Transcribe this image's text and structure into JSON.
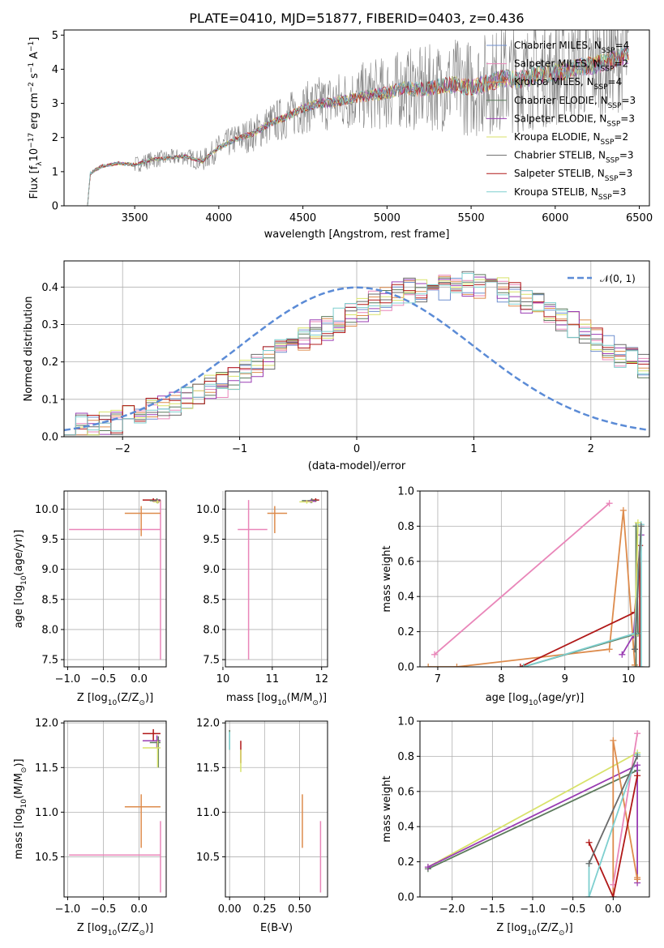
{
  "colors": {
    "chabrier_miles": "#6f8fcf",
    "salpeter_miles": "#e986b9",
    "kroupa_miles": "#dd8b4c",
    "chabrier_elodie": "#5c7a5c",
    "salpeter_elodie": "#9a3db3",
    "kroupa_elodie": "#d8e26a",
    "chabrier_stelib": "#6a6a6a",
    "salpeter_stelib": "#b01818",
    "kroupa_stelib": "#7ecfcf",
    "normal": "#5b8bd6"
  },
  "chart_data": [
    {
      "id": "spectrum",
      "type": "line",
      "title": "PLATE=0410, MJD=51877, FIBERID=0403, z=0.436",
      "xlabel": "wavelength [Angstrom, rest frame]",
      "ylabel": "Flux [f",
      "ylabel_sub": "λ",
      "ylabel_mid": "10",
      "ylabel_sup": "−17",
      "ylabel_tail": " erg cm",
      "ylabel_sup2": "−2",
      "ylabel_tail2": " s",
      "ylabel_sup3": "−1",
      "ylabel_tail3": " A",
      "ylabel_sup4": "−1",
      "ylabel_end": "]",
      "xlim": [
        3080,
        6560
      ],
      "ylim": [
        0,
        5.15
      ],
      "xticks": [
        "3500",
        "4000",
        "4500",
        "5000",
        "5500",
        "6000",
        "6500"
      ],
      "xtick_values": [
        3500,
        4000,
        4500,
        5000,
        5500,
        6000,
        6500
      ],
      "yticks": [
        "0",
        "1",
        "2",
        "3",
        "4",
        "5"
      ],
      "ytick_values": [
        0,
        1,
        2,
        3,
        4,
        5
      ],
      "grid": false,
      "legend": "right",
      "continuum": {
        "x": [
          3220,
          3300,
          3400,
          3500,
          3600,
          3700,
          3800,
          3900,
          4000,
          4100,
          4200,
          4300,
          4400,
          4500,
          4600,
          4700,
          4800,
          4900,
          5000,
          5100,
          5200,
          5300,
          5400,
          5500,
          5600,
          5700,
          5800,
          5900,
          6000,
          6100,
          6200,
          6300,
          6420
        ],
        "y": [
          0.9,
          1.15,
          1.25,
          1.2,
          1.35,
          1.4,
          1.45,
          1.3,
          1.7,
          1.95,
          2.1,
          2.4,
          2.6,
          2.85,
          3.0,
          3.05,
          3.15,
          3.25,
          3.3,
          3.45,
          3.4,
          3.5,
          3.55,
          3.45,
          3.6,
          3.75,
          3.7,
          3.85,
          3.9,
          4.0,
          4.1,
          4.2,
          4.4
        ]
      },
      "series": [
        {
          "name": "Chabrier MILES, N",
          "sub": "SSP",
          "suffix": "=4",
          "color_key": "chabrier_miles"
        },
        {
          "name": "Salpeter MILES, N",
          "sub": "SSP",
          "suffix": "=2",
          "color_key": "salpeter_miles"
        },
        {
          "name": "Kroupa MILES, N",
          "sub": "SSP",
          "suffix": "=4",
          "color_key": "kroupa_miles"
        },
        {
          "name": "Chabrier ELODIE, N",
          "sub": "SSP",
          "suffix": "=3",
          "color_key": "chabrier_elodie"
        },
        {
          "name": "Salpeter ELODIE, N",
          "sub": "SSP",
          "suffix": "=3",
          "color_key": "salpeter_elodie"
        },
        {
          "name": "Kroupa ELODIE, N",
          "sub": "SSP",
          "suffix": "=2",
          "color_key": "kroupa_elodie"
        },
        {
          "name": "Chabrier STELIB, N",
          "sub": "SSP",
          "suffix": "=3",
          "color_key": "chabrier_stelib"
        },
        {
          "name": "Salpeter STELIB, N",
          "sub": "SSP",
          "suffix": "=3",
          "color_key": "salpeter_stelib"
        },
        {
          "name": "Kroupa STELIB, N",
          "sub": "SSP",
          "suffix": "=3",
          "color_key": "kroupa_stelib"
        }
      ]
    },
    {
      "id": "residuals",
      "type": "line",
      "xlabel": "(data-model)/error",
      "ylabel": "Normed distribution",
      "xlim": [
        -2.5,
        2.5
      ],
      "ylim": [
        0,
        0.47
      ],
      "xticks": [
        "−2",
        "−1",
        "0",
        "1",
        "2"
      ],
      "xtick_values": [
        -2,
        -1,
        0,
        1,
        2
      ],
      "yticks": [
        "0.0",
        "0.1",
        "0.2",
        "0.3",
        "0.4"
      ],
      "ytick_values": [
        0,
        0.1,
        0.2,
        0.3,
        0.4
      ],
      "grid": true,
      "legend": "top-right",
      "legend_label": "𝒩(0, 1)",
      "bin_width": 0.1,
      "hist_base": [
        0.02,
        0.03,
        0.03,
        0.04,
        0.04,
        0.05,
        0.06,
        0.07,
        0.08,
        0.09,
        0.1,
        0.12,
        0.13,
        0.14,
        0.16,
        0.18,
        0.19,
        0.21,
        0.23,
        0.24,
        0.26,
        0.28,
        0.29,
        0.31,
        0.33,
        0.34,
        0.36,
        0.37,
        0.38,
        0.39,
        0.39,
        0.4,
        0.4,
        0.41,
        0.41,
        0.4,
        0.39,
        0.39,
        0.38,
        0.36,
        0.35,
        0.33,
        0.31,
        0.3,
        0.28,
        0.26,
        0.24,
        0.22,
        0.21,
        0.19
      ]
    },
    {
      "id": "age_vs_Z",
      "type": "scatter",
      "xlabel": "Z [log",
      "xlabel_sub": "10",
      "xlabel_tail": "(Z/Z",
      "xlabel_sub2": "⊙",
      "xlabel_end": ")]",
      "ylabel": "age  [log",
      "ylabel_sub": "10",
      "ylabel_tail": "(age/yr)]",
      "xlim": [
        -1.05,
        0.38
      ],
      "ylim": [
        7.38,
        10.3
      ],
      "xticks": [
        "−1.0",
        "−0.5",
        "0.0"
      ],
      "xtick_values": [
        -1.0,
        -0.5,
        0.0
      ],
      "yticks": [
        "7.5",
        "8.0",
        "8.5",
        "9.0",
        "9.5",
        "10.0"
      ],
      "ytick_values": [
        7.5,
        8.0,
        8.5,
        9.0,
        9.5,
        10.0
      ],
      "grid": true,
      "points": [
        {
          "c": "salpeter_miles",
          "x": 0.3,
          "y": 9.66,
          "xl": -0.98,
          "xh": 0.3,
          "yl": 7.5,
          "yh": 10.15
        },
        {
          "c": "kroupa_miles",
          "x": 0.03,
          "y": 9.93,
          "xl": -0.2,
          "xh": 0.3,
          "yl": 9.55,
          "yh": 10.05
        },
        {
          "c": "salpeter_stelib",
          "x": 0.2,
          "y": 10.15,
          "xl": 0.05,
          "xh": 0.3,
          "yl": 10.12,
          "yh": 10.18
        },
        {
          "c": "chabrier_elodie",
          "x": 0.25,
          "y": 10.14,
          "xl": 0.15,
          "xh": 0.3,
          "yl": 10.1,
          "yh": 10.18
        },
        {
          "c": "salpeter_elodie",
          "x": 0.27,
          "y": 10.13,
          "xl": 0.2,
          "xh": 0.3,
          "yl": 10.1,
          "yh": 10.16
        },
        {
          "c": "kroupa_elodie",
          "x": 0.26,
          "y": 10.12,
          "xl": 0.2,
          "xh": 0.3,
          "yl": 10.09,
          "yh": 10.15
        }
      ]
    },
    {
      "id": "age_vs_mass",
      "type": "scatter",
      "xlabel": "mass [log",
      "xlabel_sub": "10",
      "xlabel_tail": "(M/M",
      "xlabel_sub2": "⊙",
      "xlabel_end": ")]",
      "xlim": [
        10.05,
        12.12
      ],
      "ylim": [
        7.38,
        10.3
      ],
      "xticks": [
        "10",
        "11",
        "12"
      ],
      "xtick_values": [
        10,
        11,
        12
      ],
      "yticks": [
        "7.5",
        "8.0",
        "8.5",
        "9.0",
        "9.5",
        "10.0"
      ],
      "ytick_values": [
        7.5,
        8.0,
        8.5,
        9.0,
        9.5,
        10.0
      ],
      "grid": true,
      "points": [
        {
          "c": "salpeter_miles",
          "x": 10.52,
          "y": 9.66,
          "xl": 10.3,
          "xh": 10.9,
          "yl": 7.5,
          "yh": 10.15
        },
        {
          "c": "kroupa_miles",
          "x": 11.05,
          "y": 9.93,
          "xl": 10.9,
          "xh": 11.3,
          "yl": 9.6,
          "yh": 10.05
        },
        {
          "c": "salpeter_stelib",
          "x": 11.88,
          "y": 10.15,
          "xl": 11.8,
          "xh": 11.95,
          "yl": 10.12,
          "yh": 10.18
        },
        {
          "c": "chabrier_elodie",
          "x": 11.8,
          "y": 10.14,
          "xl": 11.6,
          "xh": 11.9,
          "yl": 10.1,
          "yh": 10.18
        },
        {
          "c": "salpeter_elodie",
          "x": 11.78,
          "y": 10.13,
          "xl": 11.65,
          "xh": 11.88,
          "yl": 10.1,
          "yh": 10.16
        },
        {
          "c": "kroupa_elodie",
          "x": 11.7,
          "y": 10.12,
          "xl": 11.55,
          "xh": 11.82,
          "yl": 10.09,
          "yh": 10.15
        }
      ]
    },
    {
      "id": "weight_vs_age",
      "type": "line",
      "xlabel": "age  [log",
      "xlabel_sub": "10",
      "xlabel_tail": "(age/yr)]",
      "ylabel": "mass weight",
      "xlim": [
        6.72,
        10.33
      ],
      "ylim": [
        0,
        1
      ],
      "xticks": [
        "7",
        "8",
        "9",
        "10"
      ],
      "xtick_values": [
        7,
        8,
        9,
        10
      ],
      "yticks": [
        "0.0",
        "0.2",
        "0.4",
        "0.6",
        "0.8",
        "1.0"
      ],
      "ytick_values": [
        0,
        0.2,
        0.4,
        0.6,
        0.8,
        1.0
      ],
      "grid": true,
      "series": [
        {
          "c": "salpeter_miles",
          "x": [
            6.95,
            9.7
          ],
          "y": [
            0.07,
            0.93
          ]
        },
        {
          "c": "kroupa_miles",
          "x": [
            6.85,
            7.3,
            9.7,
            9.92,
            10.1
          ],
          "y": [
            0.0,
            0.0,
            0.1,
            0.89,
            0.01
          ]
        },
        {
          "c": "salpeter_stelib",
          "x": [
            8.3,
            10.1,
            10.18,
            10.18
          ],
          "y": [
            0.0,
            0.31,
            0.69,
            0.0
          ]
        },
        {
          "c": "chabrier_elodie",
          "x": [
            8.35,
            10.15,
            10.12,
            10.12
          ],
          "y": [
            0.0,
            0.19,
            0.8,
            0.0
          ]
        },
        {
          "c": "salpeter_elodie",
          "x": [
            9.9,
            10.08,
            10.2
          ],
          "y": [
            0.07,
            0.18,
            0.75
          ]
        },
        {
          "c": "kroupa_elodie",
          "x": [
            10.1,
            10.15
          ],
          "y": [
            0.18,
            0.82
          ]
        },
        {
          "c": "kroupa_stelib",
          "x": [
            8.35,
            10.1,
            10.2,
            10.2
          ],
          "y": [
            0.0,
            0.19,
            0.81,
            0.0
          ]
        },
        {
          "c": "chabrier_stelib",
          "x": [
            10.1,
            10.2
          ],
          "y": [
            0.1,
            0.8
          ]
        }
      ]
    },
    {
      "id": "mass_vs_Z",
      "type": "scatter",
      "xlabel": "Z [log",
      "xlabel_sub": "10",
      "xlabel_tail": "(Z/Z",
      "xlabel_sub2": "⊙",
      "xlabel_end": ")]",
      "ylabel": "mass [log",
      "ylabel_sub": "10",
      "ylabel_tail": "(M/M",
      "ylabel_sub2": "⊙",
      "ylabel_end": ")]",
      "xlim": [
        -1.05,
        0.38
      ],
      "ylim": [
        10.05,
        12.02
      ],
      "xticks": [
        "−1.0",
        "−0.5",
        "0.0"
      ],
      "xtick_values": [
        -1.0,
        -0.5,
        0.0
      ],
      "yticks": [
        "10.5",
        "11.0",
        "11.5",
        "12.0"
      ],
      "ytick_values": [
        10.5,
        11.0,
        11.5,
        12.0
      ],
      "grid": true,
      "points": [
        {
          "c": "salpeter_miles",
          "x": 0.3,
          "y": 10.52,
          "xl": -0.98,
          "xh": 0.3,
          "yl": 10.1,
          "yh": 10.9
        },
        {
          "c": "kroupa_miles",
          "x": 0.03,
          "y": 11.06,
          "xl": -0.2,
          "xh": 0.3,
          "yl": 10.6,
          "yh": 11.2
        },
        {
          "c": "salpeter_stelib",
          "x": 0.2,
          "y": 11.88,
          "xl": 0.05,
          "xh": 0.3,
          "yl": 11.8,
          "yh": 11.93
        },
        {
          "c": "salpeter_elodie",
          "x": 0.25,
          "y": 11.8,
          "xl": 0.05,
          "xh": 0.3,
          "yl": 11.72,
          "yh": 11.86
        },
        {
          "c": "chabrier_elodie",
          "x": 0.27,
          "y": 11.78,
          "xl": 0.15,
          "xh": 0.3,
          "yl": 11.5,
          "yh": 11.85
        },
        {
          "c": "kroupa_elodie",
          "x": 0.26,
          "y": 11.72,
          "xl": 0.05,
          "xh": 0.3,
          "yl": 11.5,
          "yh": 11.8
        }
      ]
    },
    {
      "id": "mass_vs_ebv",
      "type": "scatter",
      "xlabel": "E(B-V)",
      "xlim": [
        -0.03,
        0.7
      ],
      "ylim": [
        10.05,
        12.02
      ],
      "xticks": [
        "0.00",
        "0.25",
        "0.50"
      ],
      "xtick_values": [
        0,
        0.25,
        0.5
      ],
      "yticks": [
        "10.5",
        "11.0",
        "11.5",
        "12.0"
      ],
      "ytick_values": [
        10.5,
        11.0,
        11.5,
        12.0
      ],
      "grid": true,
      "points": [
        {
          "c": "salpeter_miles",
          "x": 0.65,
          "y": 10.52,
          "xl": 0.65,
          "xh": 0.65,
          "yl": 10.1,
          "yh": 10.9
        },
        {
          "c": "kroupa_miles",
          "x": 0.52,
          "y": 11.06,
          "xl": 0.52,
          "xh": 0.52,
          "yl": 10.6,
          "yh": 11.2
        },
        {
          "c": "salpeter_stelib",
          "x": 0.08,
          "y": 11.7,
          "xl": 0.08,
          "xh": 0.08,
          "yl": 11.55,
          "yh": 11.8
        },
        {
          "c": "chabrier_elodie",
          "x": 0.0,
          "y": 11.85,
          "xl": 0.0,
          "xh": 0.0,
          "yl": 11.7,
          "yh": 11.92
        },
        {
          "c": "kroupa_elodie",
          "x": 0.08,
          "y": 11.6,
          "xl": 0.08,
          "xh": 0.08,
          "yl": 11.45,
          "yh": 11.7
        },
        {
          "c": "kroupa_stelib",
          "x": 0.0,
          "y": 11.8,
          "xl": 0.0,
          "xh": 0.0,
          "yl": 11.7,
          "yh": 11.9
        }
      ]
    },
    {
      "id": "weight_vs_Z",
      "type": "line",
      "xlabel": "Z [log",
      "xlabel_sub": "10",
      "xlabel_tail": "(Z/Z",
      "xlabel_sub2": "⊙",
      "xlabel_end": ")]",
      "ylabel": "mass weight",
      "xlim": [
        -2.4,
        0.45
      ],
      "ylim": [
        0,
        1
      ],
      "xticks": [
        "−2.0",
        "−1.5",
        "−1.0",
        "−0.5",
        "0.0"
      ],
      "xtick_values": [
        -2.0,
        -1.5,
        -1.0,
        -0.5,
        0.0
      ],
      "yticks": [
        "0.0",
        "0.2",
        "0.4",
        "0.6",
        "0.8",
        "1.0"
      ],
      "ytick_values": [
        0,
        0.2,
        0.4,
        0.6,
        0.8,
        1.0
      ],
      "grid": true,
      "series": [
        {
          "c": "kroupa_elodie",
          "x": [
            -2.3,
            0.3
          ],
          "y": [
            0.17,
            0.82
          ]
        },
        {
          "c": "chabrier_elodie",
          "x": [
            -2.3,
            0.3
          ],
          "y": [
            0.16,
            0.72
          ]
        },
        {
          "c": "salpeter_elodie",
          "x": [
            -2.3,
            0.3,
            0.3
          ],
          "y": [
            0.17,
            0.75,
            0.08
          ]
        },
        {
          "c": "kroupa_miles",
          "x": [
            0.0,
            0.0,
            0.3,
            0.3
          ],
          "y": [
            0.0,
            0.89,
            0.1,
            0.11
          ]
        },
        {
          "c": "salpeter_miles",
          "x": [
            0.0,
            0.3
          ],
          "y": [
            0.07,
            0.93
          ]
        },
        {
          "c": "salpeter_stelib",
          "x": [
            -0.3,
            0.0,
            0.3
          ],
          "y": [
            0.31,
            0.0,
            0.69
          ]
        },
        {
          "c": "kroupa_stelib",
          "x": [
            -0.3,
            -0.3,
            -0.3,
            0.3
          ],
          "y": [
            0.19,
            0.0,
            0.0,
            0.81
          ]
        },
        {
          "c": "chabrier_stelib",
          "x": [
            -0.3,
            0.3
          ],
          "y": [
            0.19,
            0.8
          ]
        }
      ]
    }
  ]
}
